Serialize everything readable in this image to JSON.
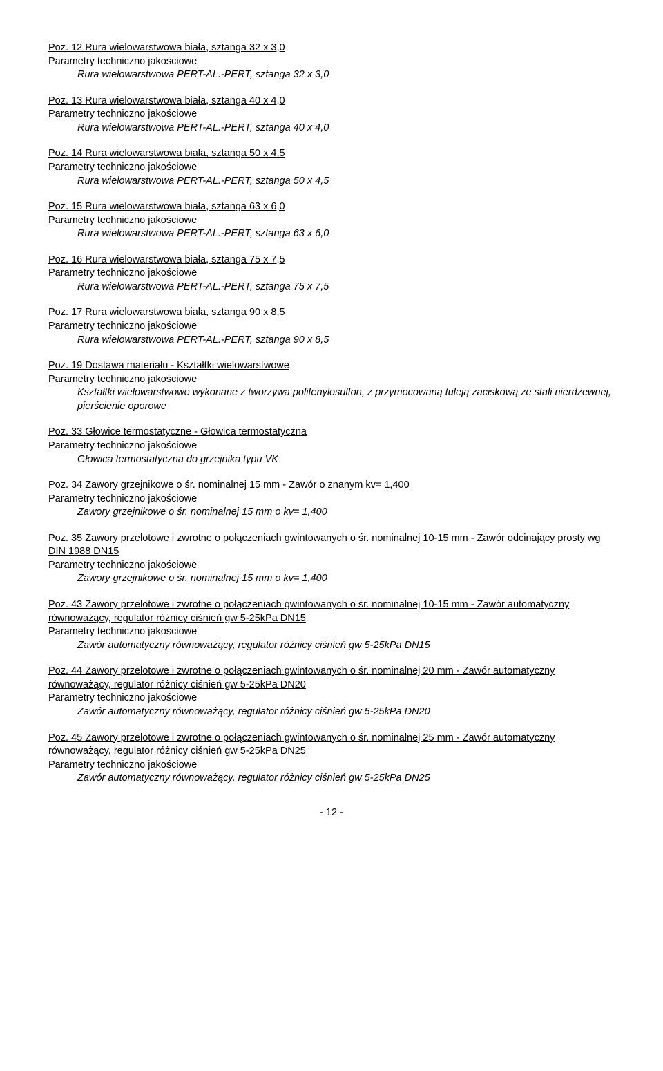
{
  "items": [
    {
      "title": "Poz. 12 Rura wielowarstwowa biała, sztanga 32 x 3,0",
      "param": "Parametry techniczno jakościowe",
      "sub": "Rura wielowarstwowa PERT-AL.-PERT, sztanga 32 x 3,0"
    },
    {
      "title": "Poz. 13 Rura wielowarstwowa  biała, sztanga 40 x 4,0",
      "param": "Parametry techniczno jakościowe",
      "sub": "Rura wielowarstwowa PERT-AL.-PERT, sztanga 40 x 4,0"
    },
    {
      "title": "Poz. 14 Rura wielowarstwowa biała, sztanga 50 x 4,5",
      "param": "Parametry techniczno jakościowe",
      "sub": "Rura wielowarstwowa PERT-AL.-PERT, sztanga 50 x 4,5"
    },
    {
      "title": "Poz. 15 Rura wielowarstwowa biała, sztanga 63 x 6,0",
      "param": "Parametry techniczno jakościowe",
      "sub": "Rura wielowarstwowa PERT-AL.-PERT, sztanga 63 x 6,0"
    },
    {
      "title": "Poz. 16 Rura wielowarstwowa biała, sztanga 75 x 7,5",
      "param": "Parametry techniczno jakościowe",
      "sub": "Rura wielowarstwowa PERT-AL.-PERT, sztanga 75 x 7,5"
    },
    {
      "title": "Poz. 17 Rura wielowarstwowa biała, sztanga 90 x 8,5",
      "param": "Parametry techniczno jakościowe",
      "sub": "Rura wielowarstwowa PERT-AL.-PERT, sztanga 90 x 8,5"
    },
    {
      "title": "Poz. 19        Dostawa materiału - Kształtki wielowarstwowe",
      "param": "Parametry techniczno jakościowe",
      "sub": "Kształtki wielowarstwowe wykonane z tworzywa polifenylosulfon, z przymocowaną tuleją zaciskową ze stali nierdzewnej, pierścienie oporowe"
    },
    {
      "title": "Poz. 33 Głowice termostatyczne - Głowica termostatyczna",
      "param": "Parametry techniczno jakościowe",
      "sub": "Głowica termostatyczna do grzejnika typu VK"
    },
    {
      "title": "Poz. 34 Zawory grzejnikowe o śr. nominalnej 15 mm - Zawór o znanym kv= 1,400",
      "param": "Parametry techniczno jakościowe",
      "sub": "Zawory grzejnikowe o śr. nominalnej 15 mm o kv= 1,400"
    },
    {
      "title": "Poz. 35 Zawory przelotowe i zwrotne o połączeniach gwintowanych o śr. nominalnej 10-15 mm - Zawór odcinający prosty wg DIN 1988 DN15",
      "param": "Parametry techniczno jakościowe",
      "sub": "Zawory grzejnikowe o śr. nominalnej 15 mm o kv= 1,400"
    },
    {
      "title": "Poz. 43 Zawory przelotowe i zwrotne o połączeniach gwintowanych o śr. nominalnej 10-15 mm - Zawór automatyczny równoważący, regulator różnicy ciśnień gw 5-25kPa DN15",
      "param": "Parametry techniczno jakościowe",
      "sub": "Zawór automatyczny równoważący, regulator różnicy ciśnień gw 5-25kPa DN15"
    },
    {
      "title": "Poz. 44 Zawory przelotowe i zwrotne o połączeniach gwintowanych o śr. nominalnej 20 mm - Zawór automatyczny równoważący, regulator różnicy ciśnień gw 5-25kPa DN20",
      "param": "Parametry techniczno jakościowe",
      "sub": "Zawór automatyczny równoważący, regulator różnicy ciśnień gw 5-25kPa DN20"
    },
    {
      "title": "Poz. 45 Zawory przelotowe i zwrotne o połączeniach gwintowanych o śr. nominalnej 25 mm - Zawór automatyczny równoważący, regulator różnicy ciśnień gw 5-25kPa DN25",
      "param": "Parametry techniczno jakościowe",
      "sub": "Zawór automatyczny równoważący, regulator różnicy ciśnień gw 5-25kPa DN25"
    }
  ],
  "footer": "- 12 -"
}
